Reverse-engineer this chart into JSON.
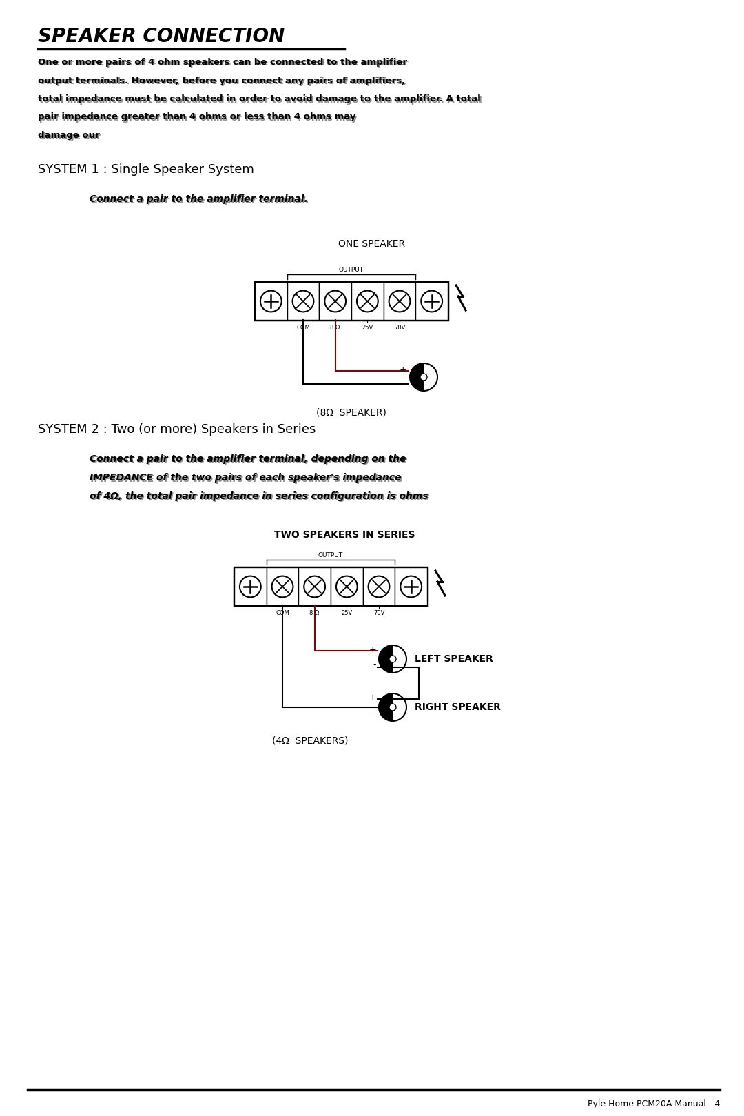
{
  "title": "SPEAKER CONNECTION",
  "bg_color": "#ffffff",
  "text_color": "#000000",
  "page_width": 10.8,
  "page_height": 16.19,
  "body_text_line1": "One or more pairs of 4 ohm speakers can be connected to the amplifier",
  "body_text_line1b": "output terminals. However, before you connect any pairs of amplifiers,",
  "body_text_line2": "total impedance must be calculated in order to avoid damage to the amplifier. A total",
  "body_text_line3": "pair impedance greater than 4 ohms or less than 4 ohms may",
  "body_text_line4": "damage our",
  "system1_title": "SYSTEM 1 : Single Speaker System",
  "system1_desc": "Connect a pair to the amplifier terminal.",
  "system1_diagram_label": "ONE SPEAKER",
  "system1_output_label": "OUTPUT",
  "system1_terminals": [
    "COM",
    "8 Ω",
    "25V",
    "70V"
  ],
  "system1_speaker_label": "(8Ω  SPEAKER)",
  "system2_title": "SYSTEM 2 : Two (or more) Speakers in Series",
  "system2_desc_line1": "Connect a pair to the amplifier terminal, depending on the",
  "system2_desc_line2": "IMPEDANCE of the two pairs of each speaker's impedance",
  "system2_desc_line3": "of 4Ω, the total pair impedance in series configuration is ohms",
  "system2_diagram_label": "TWO SPEAKERS IN SERIES",
  "system2_output_label": "OUTPUT",
  "system2_terminals": [
    "COM",
    "8 Ω",
    "25V",
    "70V"
  ],
  "system2_left_label": "LEFT SPEAKER",
  "system2_right_label": "RIGHT SPEAKER",
  "system2_speaker_label": "(4Ω  SPEAKERS)",
  "footer_text": "Pyle Home PCM20A Manual - 4"
}
